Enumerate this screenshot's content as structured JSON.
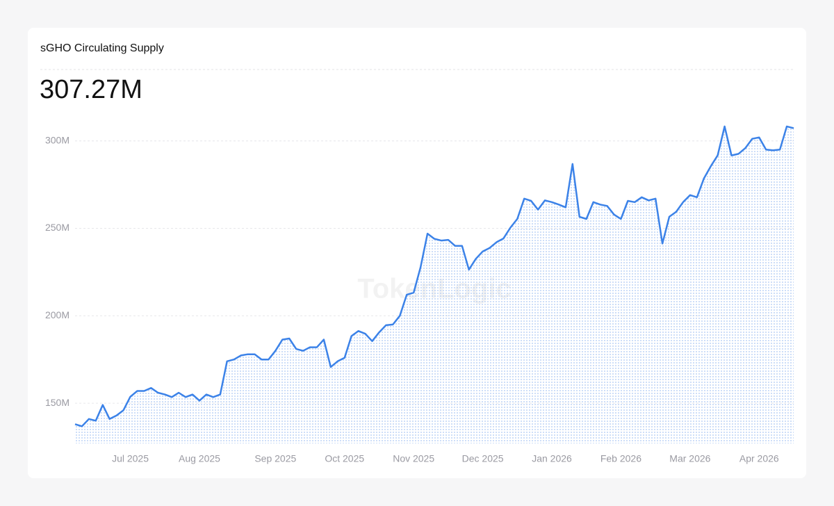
{
  "chart_data": {
    "type": "line",
    "title": "sGHO Circulating Supply",
    "headline": "307.27M",
    "watermark": "TokenLogic",
    "categories": [
      null,
      null,
      null,
      null,
      null,
      null,
      null,
      null,
      "Jul 2025",
      null,
      null,
      null,
      null,
      null,
      null,
      null,
      null,
      null,
      "Aug 2025",
      null,
      null,
      null,
      null,
      null,
      null,
      null,
      null,
      null,
      null,
      "Sep 2025",
      null,
      null,
      null,
      null,
      null,
      null,
      null,
      null,
      null,
      "Oct 2025",
      null,
      null,
      null,
      null,
      null,
      null,
      null,
      null,
      null,
      "Nov 2025",
      null,
      null,
      null,
      null,
      null,
      null,
      null,
      null,
      null,
      "Dec 2025",
      null,
      null,
      null,
      null,
      null,
      null,
      null,
      null,
      null,
      "Jan 2026",
      null,
      null,
      null,
      null,
      null,
      null,
      null,
      null,
      null,
      "Feb 2026",
      null,
      null,
      null,
      null,
      null,
      null,
      null,
      null,
      null,
      "Mar 2026",
      null,
      null,
      null,
      null,
      null,
      null,
      null,
      null,
      null,
      "Apr 2026",
      null,
      null,
      null,
      null,
      null
    ],
    "values": [
      138,
      136.8,
      141,
      140,
      149,
      141,
      143,
      146,
      153.7,
      157,
      157,
      158.7,
      156,
      155,
      153.5,
      156,
      153.5,
      155,
      151.5,
      155,
      153.5,
      155,
      174,
      175,
      177.3,
      178,
      178,
      175,
      175,
      180,
      186.4,
      187,
      181,
      180,
      182,
      182,
      186.4,
      170.7,
      174,
      176,
      188.4,
      191.3,
      189.7,
      185.5,
      190.5,
      194.6,
      195,
      200,
      212,
      213.2,
      227.7,
      247,
      244,
      243,
      243.4,
      240,
      240,
      226.4,
      232.6,
      236.8,
      238.8,
      242.1,
      244.2,
      250.4,
      255.4,
      267,
      265.7,
      260.7,
      266,
      265,
      263.6,
      262,
      286.8,
      256.6,
      255.4,
      265,
      263.6,
      262.8,
      257.9,
      255.4,
      265.7,
      265,
      267.8,
      266,
      267,
      241.3,
      256.6,
      259.5,
      265,
      269,
      267.8,
      278.5,
      285.5,
      291.7,
      308.3,
      291.7,
      292.6,
      295.9,
      301.2,
      302,
      295,
      294.6,
      295,
      308.3,
      307.27
    ],
    "color": "#3b82e8",
    "ylim": [
      127,
      315
    ],
    "yticks": [
      {
        "value": 150,
        "label": "150M"
      },
      {
        "value": 200,
        "label": "200M"
      },
      {
        "value": 250,
        "label": "250M"
      },
      {
        "value": 300,
        "label": "300M"
      }
    ],
    "grid": true
  }
}
